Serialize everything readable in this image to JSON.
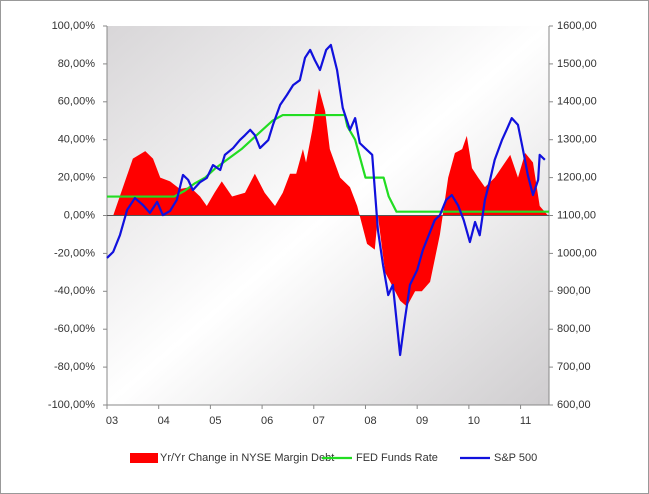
{
  "chart_data": {
    "type": "combo",
    "xlim": [
      2003,
      2011.55
    ],
    "xticks": [
      {
        "value": 2003,
        "label": "03"
      },
      {
        "value": 2004,
        "label": "04"
      },
      {
        "value": 2005,
        "label": "05"
      },
      {
        "value": 2006,
        "label": "06"
      },
      {
        "value": 2007,
        "label": "07"
      },
      {
        "value": 2008,
        "label": "08"
      },
      {
        "value": 2009,
        "label": "09"
      },
      {
        "value": 2010,
        "label": "10"
      },
      {
        "value": 2011,
        "label": "11"
      }
    ],
    "ylim": [
      -100,
      100
    ],
    "yticks": [
      {
        "value": -100,
        "label": "-100,00%"
      },
      {
        "value": -80,
        "label": "-80,00%"
      },
      {
        "value": -60,
        "label": "-60,00%"
      },
      {
        "value": -40,
        "label": "-40,00%"
      },
      {
        "value": -20,
        "label": "-20,00%"
      },
      {
        "value": 0,
        "label": "0,00%"
      },
      {
        "value": 20,
        "label": "20,00%"
      },
      {
        "value": 40,
        "label": "40,00%"
      },
      {
        "value": 60,
        "label": "60,00%"
      },
      {
        "value": 80,
        "label": "80,00%"
      },
      {
        "value": 100,
        "label": "100,00%"
      }
    ],
    "y2lim": [
      600,
      1600
    ],
    "y2ticks": [
      {
        "value": 600,
        "label": "600,00"
      },
      {
        "value": 700,
        "label": "700,00"
      },
      {
        "value": 800,
        "label": "800,00"
      },
      {
        "value": 900,
        "label": "900,00"
      },
      {
        "value": 1000,
        "label": "1000,00"
      },
      {
        "value": 1100,
        "label": "1100,00"
      },
      {
        "value": 1200,
        "label": "1200,00"
      },
      {
        "value": 1300,
        "label": "1300,00"
      },
      {
        "value": 1400,
        "label": "1400,00"
      },
      {
        "value": 1500,
        "label": "1500,00"
      },
      {
        "value": 1600,
        "label": "1600,00"
      }
    ],
    "series": [
      {
        "name": "Yr/Yr Change in NYSE Margin Debt",
        "type": "area",
        "color": "#ff0000",
        "x": [
          2003.12,
          2003.5,
          2003.74,
          2003.89,
          2004.03,
          2004.22,
          2004.41,
          2004.61,
          2004.8,
          2004.93,
          2005.08,
          2005.22,
          2005.42,
          2005.67,
          2005.86,
          2006.05,
          2006.25,
          2006.4,
          2006.54,
          2006.66,
          2006.79,
          2006.85,
          2006.97,
          2007.1,
          2007.22,
          2007.31,
          2007.51,
          2007.7,
          2007.84,
          2008.03,
          2008.18,
          2008.24,
          2008.38,
          2008.67,
          2008.8,
          2008.96,
          2009.09,
          2009.25,
          2009.44,
          2009.6,
          2009.73,
          2009.87,
          2009.96,
          2010.06,
          2010.18,
          2010.31,
          2010.5,
          2010.8,
          2010.95,
          2011.09,
          2011.24,
          2011.37,
          2011.53
        ],
        "values": [
          0,
          30,
          34,
          30,
          20,
          18,
          14,
          15,
          10,
          5,
          12,
          18,
          10,
          12,
          22,
          12,
          5,
          12,
          22,
          22,
          35,
          28,
          45,
          67,
          55,
          35,
          20,
          15,
          5,
          -15,
          -18,
          0,
          -30,
          -45,
          -48,
          -40,
          -40,
          -35,
          -10,
          20,
          33,
          35,
          42,
          25,
          20,
          15,
          20,
          32,
          20,
          33,
          28,
          5,
          0
        ]
      },
      {
        "name": "FED Funds Rate",
        "type": "line",
        "color": "#22dd22",
        "x": [
          2003,
          2004.3,
          2004.5,
          2004.7,
          2004.9,
          2005.1,
          2005.35,
          2005.6,
          2005.8,
          2006,
          2006.2,
          2006.4,
          2007.6,
          2007.65,
          2007.8,
          2007.9,
          2008,
          2008.35,
          2008.45,
          2008.6,
          2011.55
        ],
        "values": [
          10,
          10,
          13,
          17,
          20,
          25,
          30,
          35,
          40,
          45,
          50,
          53,
          53,
          47,
          40,
          30,
          20,
          20,
          10,
          2,
          2
        ]
      },
      {
        "name": "S&P 500",
        "type": "line",
        "axis": "y2",
        "color": "#1111dd",
        "x": [
          2003,
          2003.12,
          2003.25,
          2003.39,
          2003.54,
          2003.7,
          2003.83,
          2003.97,
          2004.08,
          2004.22,
          2004.35,
          2004.47,
          2004.57,
          2004.66,
          2004.8,
          2004.93,
          2005.05,
          2005.19,
          2005.28,
          2005.44,
          2005.57,
          2005.67,
          2005.77,
          2005.86,
          2005.96,
          2006.12,
          2006.21,
          2006.35,
          2006.48,
          2006.6,
          2006.73,
          2006.83,
          2006.93,
          2007.02,
          2007.12,
          2007.24,
          2007.33,
          2007.45,
          2007.56,
          2007.7,
          2007.8,
          2007.89,
          2007.99,
          2008.13,
          2008.24,
          2008.34,
          2008.44,
          2008.53,
          2008.67,
          2008.76,
          2008.86,
          2009,
          2009.11,
          2009.25,
          2009.34,
          2009.44,
          2009.56,
          2009.67,
          2009.79,
          2009.9,
          2010.02,
          2010.12,
          2010.21,
          2010.31,
          2010.41,
          2010.5,
          2010.64,
          2010.73,
          2010.83,
          2010.95,
          2011.04,
          2011.14,
          2011.24,
          2011.34,
          2011.37,
          2011.47
        ],
        "values": [
          988,
          1004,
          1048,
          1115,
          1146,
          1127,
          1107,
          1136,
          1101,
          1112,
          1141,
          1207,
          1194,
          1167,
          1188,
          1199,
          1233,
          1220,
          1260,
          1278,
          1299,
          1312,
          1326,
          1312,
          1278,
          1299,
          1339,
          1392,
          1418,
          1444,
          1457,
          1516,
          1537,
          1510,
          1484,
          1537,
          1550,
          1484,
          1384,
          1326,
          1357,
          1291,
          1278,
          1260,
          1062,
          969,
          890,
          917,
          732,
          824,
          917,
          956,
          1009,
          1057,
          1088,
          1101,
          1141,
          1154,
          1127,
          1088,
          1030,
          1083,
          1048,
          1141,
          1194,
          1247,
          1299,
          1326,
          1357,
          1339,
          1278,
          1207,
          1154,
          1194,
          1260,
          1247
        ]
      }
    ]
  }
}
